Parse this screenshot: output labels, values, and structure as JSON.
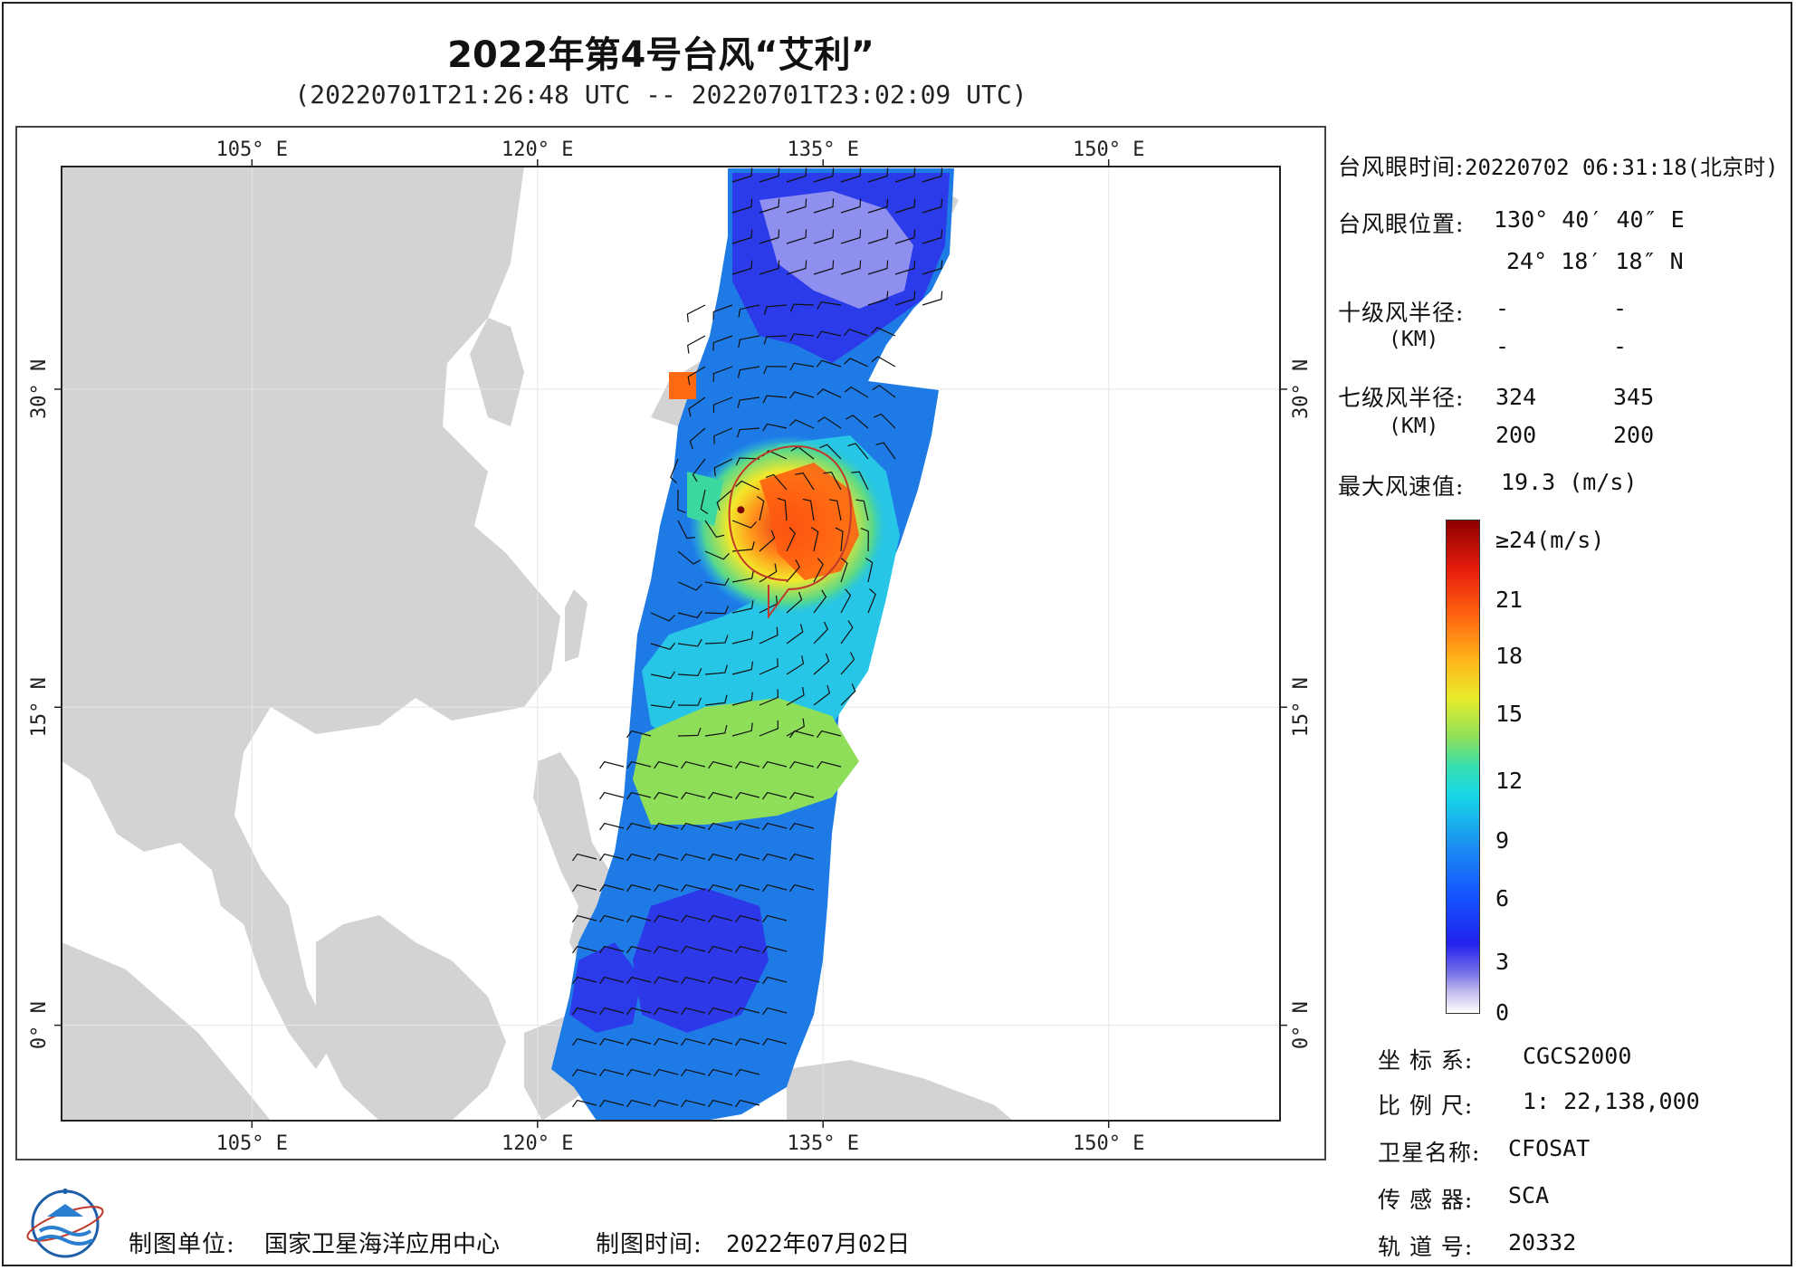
{
  "title": "2022年第4号台风“艾利”",
  "subtitle": "(20220701T21:26:48 UTC -- 20220701T23:02:09 UTC)",
  "map": {
    "lon_labels": [
      "105° E",
      "120° E",
      "135° E",
      "150° E"
    ],
    "lat_labels": [
      "30° N",
      "15° N",
      "0° N"
    ],
    "land_color": "#d3d3d3",
    "ocean_color": "#ffffff",
    "storm_eye": {
      "lon": 130.68,
      "lat": 24.31
    }
  },
  "info": {
    "eye_time_label": "台风眼时间:",
    "eye_time_value": "20220702 06:31:18(北京时)",
    "eye_pos_label": "台风眼位置:",
    "eye_lon": "130° 40′ 40″ E",
    "eye_lat": "24° 18′ 18″ N",
    "r10_label": "十级风半径:",
    "r10_unit": "(KM)",
    "r10_values": [
      "-",
      "-",
      "-",
      "-"
    ],
    "r7_label": "七级风半径:",
    "r7_unit": "(KM)",
    "r7_values": [
      "324",
      "345",
      "200",
      "200"
    ],
    "max_wind_label": "最大风速值:",
    "max_wind_value": "19.3  (m/s)"
  },
  "legend": {
    "ticks": [
      "≥24(m/s)",
      "21",
      "18",
      "15",
      "12",
      "9",
      "6",
      "3",
      "0"
    ]
  },
  "meta": {
    "crs_label": "坐 标 系:",
    "crs_value": "CGCS2000",
    "scale_label": "比 例 尺:",
    "scale_value": "1: 22,138,000",
    "satellite_label": "卫星名称:",
    "satellite_value": "CFOSAT",
    "sensor_label": "传 感 器:",
    "sensor_value": "SCA",
    "orbit_label": "轨 道 号:",
    "orbit_value": "20332"
  },
  "footer": {
    "unit_label": "制图单位:",
    "unit_value": "国家卫星海洋应用中心",
    "date_label": "制图时间:",
    "date_value": "2022年07月02日"
  }
}
